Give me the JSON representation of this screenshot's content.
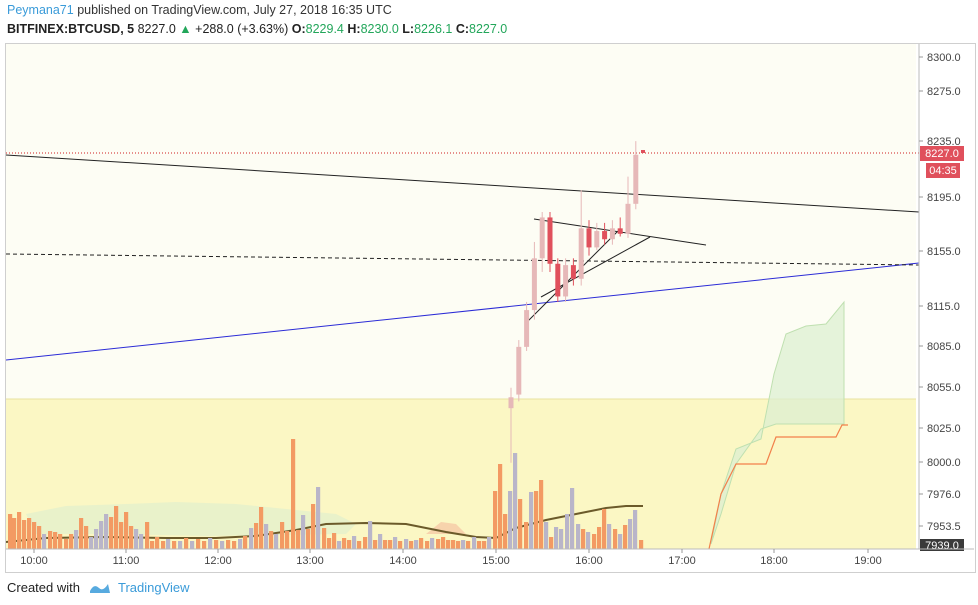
{
  "header": {
    "user": "Peymana71",
    "published_text": "published on TradingView.com, July 27, 2018 16:35 UTC",
    "symbol": "BITFINEX:BTCUSD, 5",
    "last": "8227.0",
    "change_arrow": "▲",
    "change": "+288.0 (+3.63%)",
    "o_label": "O:",
    "o_value": "8229.4",
    "h_label": "H:",
    "h_value": "8230.0",
    "l_label": "L:",
    "l_value": "8226.1",
    "c_label": "C:",
    "c_value": "8227.0"
  },
  "price_scale": {
    "labels": [
      "8300.0",
      "8275.0",
      "8235.0",
      "8195.0",
      "8155.0",
      "8115.0",
      "8085.0",
      "8055.0",
      "8025.0",
      "8000.0",
      "7976.0",
      "7953.5"
    ],
    "current_price_label": "8227.0",
    "countdown_label": "04:35",
    "bottom_label": "7939.0"
  },
  "time_axis": {
    "labels": [
      "10:00",
      "11:00",
      "12:00",
      "13:00",
      "14:00",
      "15:00",
      "16:00",
      "17:00",
      "18:00",
      "19:00"
    ]
  },
  "colors": {
    "up": "#e6b8b8",
    "down": "#e0505c",
    "vol_up": "#b9b5c9",
    "vol_down": "#f39a63",
    "trend_blue": "#2b2bd6",
    "price_line": "#e0505c",
    "cloud": "#d9ecd0",
    "ma": "#6b5a2a",
    "yellow_band": "#fbf7c4"
  },
  "footer": {
    "created_with": "Created with",
    "brand": "TradingView"
  },
  "chart_data": {
    "type": "candlestick",
    "symbol": "BITFINEX:BTCUSD",
    "interval": "5",
    "last_price": 8227.0,
    "open": 8229.4,
    "high": 8230.0,
    "low": 8226.1,
    "close": 8227.0,
    "change": 288.0,
    "change_pct": 3.63,
    "y_range": [
      7939.0,
      8300.0
    ],
    "x_range": [
      "10:00",
      "19:00"
    ],
    "candles": [
      {
        "t": "15:06",
        "o": 8040,
        "h": 8055,
        "l": 8000,
        "c": 8048
      },
      {
        "t": "15:12",
        "o": 8050,
        "h": 8090,
        "l": 8045,
        "c": 8085
      },
      {
        "t": "15:18",
        "o": 8085,
        "h": 8118,
        "l": 8082,
        "c": 8112
      },
      {
        "t": "15:24",
        "o": 8112,
        "h": 8162,
        "l": 8105,
        "c": 8150
      },
      {
        "t": "15:30",
        "o": 8150,
        "h": 8184,
        "l": 8140,
        "c": 8180
      },
      {
        "t": "15:36",
        "o": 8180,
        "h": 8184,
        "l": 8140,
        "c": 8146
      },
      {
        "t": "15:42",
        "o": 8146,
        "h": 8150,
        "l": 8118,
        "c": 8122
      },
      {
        "t": "15:48",
        "o": 8122,
        "h": 8150,
        "l": 8118,
        "c": 8145
      },
      {
        "t": "15:54",
        "o": 8145,
        "h": 8150,
        "l": 8130,
        "c": 8135
      },
      {
        "t": "16:00",
        "o": 8135,
        "h": 8200,
        "l": 8130,
        "c": 8172
      },
      {
        "t": "16:06",
        "o": 8172,
        "h": 8178,
        "l": 8152,
        "c": 8158
      },
      {
        "t": "16:12",
        "o": 8158,
        "h": 8176,
        "l": 8156,
        "c": 8170
      },
      {
        "t": "16:18",
        "o": 8170,
        "h": 8176,
        "l": 8160,
        "c": 8164
      },
      {
        "t": "16:24",
        "o": 8164,
        "h": 8178,
        "l": 8160,
        "c": 8172
      },
      {
        "t": "16:30",
        "o": 8172,
        "h": 8180,
        "l": 8166,
        "c": 8168
      },
      {
        "t": "16:36",
        "o": 8168,
        "h": 8210,
        "l": 8165,
        "c": 8190
      },
      {
        "t": "16:42",
        "o": 8190,
        "h": 8236,
        "l": 8186,
        "c": 8226
      }
    ]
  }
}
